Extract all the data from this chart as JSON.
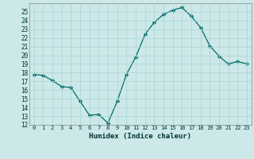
{
  "x": [
    0,
    1,
    2,
    3,
    4,
    5,
    6,
    7,
    8,
    9,
    10,
    11,
    12,
    13,
    14,
    15,
    16,
    17,
    18,
    19,
    20,
    21,
    22,
    23
  ],
  "y": [
    17.8,
    17.7,
    17.1,
    16.4,
    16.3,
    14.7,
    13.1,
    13.2,
    12.2,
    14.7,
    17.8,
    19.8,
    22.4,
    23.8,
    24.7,
    25.2,
    25.5,
    24.5,
    23.2,
    21.1,
    19.9,
    19.0,
    19.3,
    19.0
  ],
  "xlabel": "Humidex (Indice chaleur)",
  "xlim": [
    -0.5,
    23.5
  ],
  "ylim": [
    12,
    26
  ],
  "yticks": [
    12,
    13,
    14,
    15,
    16,
    17,
    18,
    19,
    20,
    21,
    22,
    23,
    24,
    25
  ],
  "xticks": [
    0,
    1,
    2,
    3,
    4,
    5,
    6,
    7,
    8,
    9,
    10,
    11,
    12,
    13,
    14,
    15,
    16,
    17,
    18,
    19,
    20,
    21,
    22,
    23
  ],
  "line_color": "#006b6b",
  "marker_color": "#006b6b",
  "bg_color": "#cce8e8",
  "grid_color": "#aad4d4",
  "font_color": "#003333"
}
